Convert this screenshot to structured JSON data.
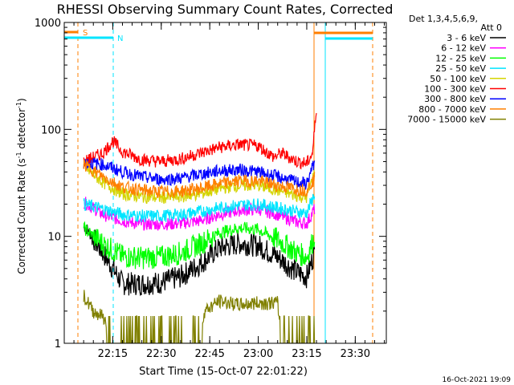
{
  "chart_data": {
    "type": "line",
    "title": "RHESSI Observing Summary Count Rates, Corrected",
    "xlabel": "Start Time (15-Oct-07 22:01:22)",
    "ylabel_main": "Corrected Count Rate (s",
    "ylabel_sup1": "-1",
    "ylabel_mid": " detector",
    "ylabel_sup2": "-1",
    "ylabel_end": ")",
    "footer": "16-Oct-2021 19:09",
    "det_label": "Det 1,3,4,5,6,9,",
    "att_label": "Att 0",
    "y_scale": "log",
    "ylim": [
      1,
      1000
    ],
    "xlim_minutes": [
      22.0,
      23.66
    ],
    "x_ticks": [
      {
        "label": "22:15",
        "t": 22.25
      },
      {
        "label": "22:30",
        "t": 22.5
      },
      {
        "label": "22:45",
        "t": 22.75
      },
      {
        "label": "23:00",
        "t": 23.0
      },
      {
        "label": "23:15",
        "t": 23.25
      },
      {
        "label": "23:30",
        "t": 23.5
      }
    ],
    "y_ticks": [
      {
        "label": "1",
        "v": 1
      },
      {
        "label": "10",
        "v": 10
      },
      {
        "label": "100",
        "v": 100
      },
      {
        "label": "1000",
        "v": 1000
      }
    ],
    "markers": {
      "saa_label": "S",
      "night_label": "N",
      "saa_color": "#ff7f00",
      "night_color": "#00e5ff"
    },
    "series": [
      {
        "name": "3 - 6 keV",
        "color": "#000000",
        "points": [
          [
            22.1,
            13
          ],
          [
            22.2,
            7
          ],
          [
            22.3,
            3.6
          ],
          [
            22.4,
            3.6
          ],
          [
            22.5,
            3.7
          ],
          [
            22.6,
            4.2
          ],
          [
            22.7,
            5.5
          ],
          [
            22.8,
            7.8
          ],
          [
            22.9,
            8.6
          ],
          [
            23.0,
            8.2
          ],
          [
            23.1,
            6.4
          ],
          [
            23.2,
            4.6
          ],
          [
            23.25,
            4.2
          ],
          [
            23.29,
            7
          ]
        ]
      },
      {
        "name": "6 - 12 keV",
        "color": "#ff00ff",
        "points": [
          [
            22.1,
            21
          ],
          [
            22.2,
            16
          ],
          [
            22.3,
            14
          ],
          [
            22.4,
            13
          ],
          [
            22.5,
            13
          ],
          [
            22.6,
            13.2
          ],
          [
            22.7,
            14
          ],
          [
            22.8,
            16
          ],
          [
            22.9,
            17.5
          ],
          [
            23.0,
            18
          ],
          [
            23.1,
            16
          ],
          [
            23.2,
            13.6
          ],
          [
            23.25,
            13.2
          ],
          [
            23.29,
            18
          ]
        ]
      },
      {
        "name": "12 - 25 keV",
        "color": "#00ff00",
        "points": [
          [
            22.1,
            12
          ],
          [
            22.2,
            8.5
          ],
          [
            22.3,
            6.5
          ],
          [
            22.4,
            6.3
          ],
          [
            22.5,
            6.4
          ],
          [
            22.6,
            7
          ],
          [
            22.7,
            8.5
          ],
          [
            22.8,
            10.8
          ],
          [
            22.9,
            12
          ],
          [
            23.0,
            11.6
          ],
          [
            23.1,
            9.3
          ],
          [
            23.2,
            7
          ],
          [
            23.25,
            6.4
          ],
          [
            23.29,
            10
          ]
        ]
      },
      {
        "name": "25 - 50 keV",
        "color": "#00e5ff",
        "points": [
          [
            22.1,
            20
          ],
          [
            22.2,
            18
          ],
          [
            22.3,
            16
          ],
          [
            22.4,
            15.5
          ],
          [
            22.5,
            15.5
          ],
          [
            22.6,
            16
          ],
          [
            22.7,
            17
          ],
          [
            22.8,
            18.5
          ],
          [
            22.9,
            19.5
          ],
          [
            23.0,
            20
          ],
          [
            23.1,
            18.5
          ],
          [
            23.2,
            17
          ],
          [
            23.25,
            16.5
          ],
          [
            23.29,
            25
          ]
        ]
      },
      {
        "name": "50 - 100 keV",
        "color": "#d4d400",
        "points": [
          [
            22.1,
            45
          ],
          [
            22.2,
            32
          ],
          [
            22.3,
            25
          ],
          [
            22.4,
            23.5
          ],
          [
            22.5,
            23
          ],
          [
            22.6,
            23.5
          ],
          [
            22.7,
            25
          ],
          [
            22.8,
            28
          ],
          [
            22.9,
            30
          ],
          [
            23.0,
            30
          ],
          [
            23.1,
            27
          ],
          [
            23.2,
            24
          ],
          [
            23.25,
            23
          ],
          [
            23.29,
            40
          ]
        ]
      },
      {
        "name": "100 - 300 keV",
        "color": "#ff0000",
        "points": [
          [
            22.1,
            50
          ],
          [
            22.2,
            60
          ],
          [
            22.25,
            78
          ],
          [
            22.3,
            62
          ],
          [
            22.4,
            52
          ],
          [
            22.5,
            50
          ],
          [
            22.6,
            53
          ],
          [
            22.7,
            60
          ],
          [
            22.8,
            68
          ],
          [
            22.9,
            72
          ],
          [
            23.0,
            70
          ],
          [
            23.08,
            55
          ],
          [
            23.12,
            60
          ],
          [
            23.2,
            50
          ],
          [
            23.25,
            48
          ],
          [
            23.28,
            60
          ],
          [
            23.3,
            160
          ]
        ]
      },
      {
        "name": "300 - 800 keV",
        "color": "#0000ff",
        "points": [
          [
            22.1,
            49
          ],
          [
            22.2,
            47
          ],
          [
            22.3,
            40
          ],
          [
            22.4,
            36
          ],
          [
            22.5,
            34
          ],
          [
            22.6,
            35
          ],
          [
            22.7,
            38
          ],
          [
            22.8,
            41
          ],
          [
            22.9,
            42
          ],
          [
            23.0,
            40
          ],
          [
            23.1,
            36
          ],
          [
            23.2,
            32
          ],
          [
            23.25,
            31
          ],
          [
            23.29,
            50
          ]
        ]
      },
      {
        "name": "800 - 7000 keV",
        "color": "#ff7f00",
        "points": [
          [
            22.1,
            47
          ],
          [
            22.2,
            36
          ],
          [
            22.3,
            29
          ],
          [
            22.4,
            27
          ],
          [
            22.5,
            26
          ],
          [
            22.6,
            26.5
          ],
          [
            22.7,
            28
          ],
          [
            22.8,
            31
          ],
          [
            22.9,
            33
          ],
          [
            23.0,
            33
          ],
          [
            23.1,
            30
          ],
          [
            23.2,
            27.5
          ],
          [
            23.25,
            27
          ],
          [
            23.29,
            35
          ]
        ]
      },
      {
        "name": "7000 - 15000 keV",
        "color": "#808000",
        "points": [
          [
            22.1,
            2.8
          ],
          [
            22.15,
            2
          ],
          [
            22.2,
            1.8
          ],
          [
            22.26,
            1
          ],
          [
            22.7,
            1
          ],
          [
            22.72,
            2
          ],
          [
            22.8,
            2.5
          ],
          [
            22.9,
            2.3
          ],
          [
            23.0,
            2.4
          ],
          [
            23.1,
            2.4
          ],
          [
            23.12,
            1
          ],
          [
            23.29,
            1
          ]
        ]
      }
    ]
  }
}
